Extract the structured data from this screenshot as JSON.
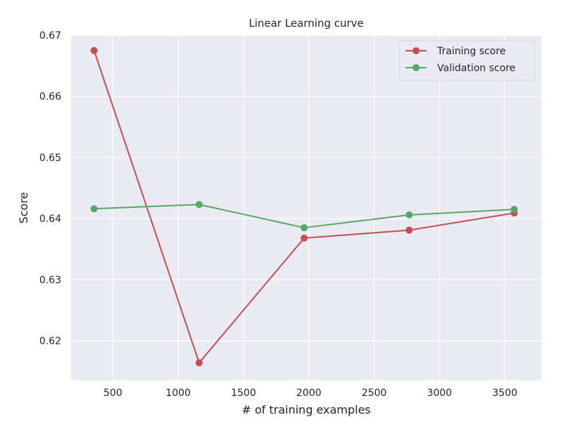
{
  "chart_data": {
    "type": "line",
    "title": "Linear Learning curve",
    "xlabel": "# of training examples",
    "ylabel": "Score",
    "x": [
      356,
      1160,
      1964,
      2768,
      3572
    ],
    "xlim": [
      180,
      3780
    ],
    "ylim": [
      0.6135,
      0.67
    ],
    "xticks": [
      500,
      1000,
      1500,
      2000,
      2500,
      3000,
      3500
    ],
    "yticks": [
      0.62,
      0.63,
      0.64,
      0.65,
      0.66,
      0.67
    ],
    "xtick_labels": [
      "500",
      "1000",
      "1500",
      "2000",
      "2500",
      "3000",
      "3500"
    ],
    "ytick_labels": [
      "0.62",
      "0.63",
      "0.64",
      "0.65",
      "0.66",
      "0.67"
    ],
    "series": [
      {
        "name": "Training score",
        "color": "#c44e52",
        "values": [
          0.6675,
          0.6164,
          0.6368,
          0.6381,
          0.6409
        ]
      },
      {
        "name": "Validation score",
        "color": "#55a868",
        "values": [
          0.6416,
          0.6423,
          0.6385,
          0.6406,
          0.6415
        ]
      }
    ],
    "grid": true,
    "legend_position": "top-right",
    "background_color": "#eaeaf2",
    "grid_color": "#ffffff"
  }
}
